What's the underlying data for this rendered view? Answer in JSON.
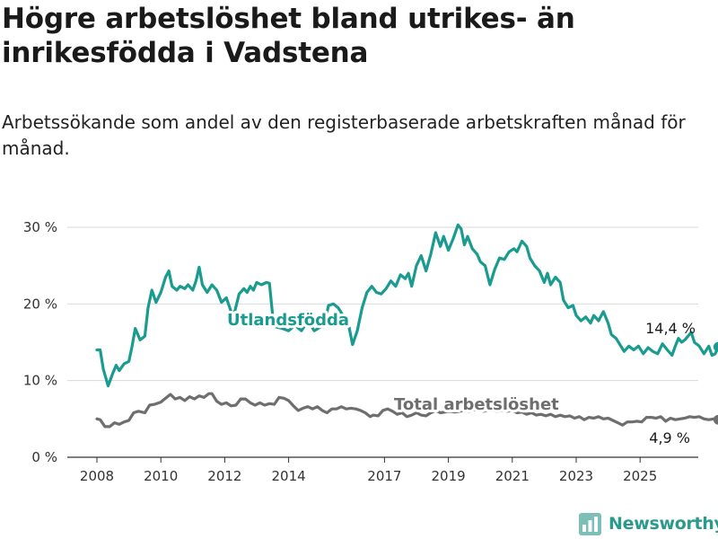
{
  "header": {
    "title": "Högre arbetslöshet bland utrikes- än inrikesfödda i Vadstena",
    "subtitle": "Arbetssökande som andel av den registerbaserade arbetskraften månad för månad."
  },
  "brand": {
    "name": "Newsworthy",
    "color": "#2a9a8c",
    "icon": "bar-chart-logo-icon"
  },
  "chart_data": {
    "type": "line",
    "ylim": [
      0,
      30
    ],
    "yticks": [
      0,
      10,
      20,
      30
    ],
    "ytick_labels": [
      "0 %",
      "10 %",
      "20 %",
      "30 %"
    ],
    "xlim": [
      2007.8,
      2026.4
    ],
    "xticks": [
      2008,
      2010,
      2012,
      2014,
      2017,
      2019,
      2021,
      2023,
      2025
    ],
    "xtick_labels": [
      "2008",
      "2010",
      "2012",
      "2014",
      "2017",
      "2019",
      "2021",
      "2023",
      "2025"
    ],
    "grid": "horizontal",
    "series": [
      {
        "name": "Utlandsfödda",
        "color": "#1a9b8f",
        "end_label": "14,4 %",
        "points": [
          [
            2008.0,
            14.0
          ],
          [
            2008.1,
            14.0
          ],
          [
            2008.2,
            11.5
          ],
          [
            2008.35,
            9.3
          ],
          [
            2008.5,
            11.0
          ],
          [
            2008.6,
            12.0
          ],
          [
            2008.7,
            11.3
          ],
          [
            2008.85,
            12.2
          ],
          [
            2009.0,
            12.5
          ],
          [
            2009.1,
            14.5
          ],
          [
            2009.2,
            16.8
          ],
          [
            2009.35,
            15.3
          ],
          [
            2009.5,
            15.8
          ],
          [
            2009.6,
            19.5
          ],
          [
            2009.72,
            21.8
          ],
          [
            2009.85,
            20.2
          ],
          [
            2010.0,
            21.5
          ],
          [
            2010.15,
            23.5
          ],
          [
            2010.25,
            24.3
          ],
          [
            2010.35,
            22.3
          ],
          [
            2010.5,
            21.8
          ],
          [
            2010.6,
            22.3
          ],
          [
            2010.75,
            22.0
          ],
          [
            2010.85,
            22.5
          ],
          [
            2011.0,
            21.8
          ],
          [
            2011.1,
            23.0
          ],
          [
            2011.2,
            24.8
          ],
          [
            2011.3,
            22.5
          ],
          [
            2011.45,
            21.5
          ],
          [
            2011.6,
            22.5
          ],
          [
            2011.75,
            21.8
          ],
          [
            2011.9,
            20.2
          ],
          [
            2012.05,
            20.8
          ],
          [
            2012.2,
            19.0
          ],
          [
            2012.3,
            18.8
          ],
          [
            2012.45,
            21.3
          ],
          [
            2012.6,
            22.0
          ],
          [
            2012.7,
            21.5
          ],
          [
            2012.8,
            22.3
          ],
          [
            2012.9,
            21.8
          ],
          [
            2013.0,
            22.8
          ],
          [
            2013.15,
            22.5
          ],
          [
            2013.3,
            22.8
          ],
          [
            2013.4,
            22.7
          ],
          [
            2013.5,
            18.5
          ],
          [
            2013.6,
            17.0
          ],
          [
            2013.8,
            16.8
          ],
          [
            2014.0,
            16.5
          ],
          [
            2014.2,
            17.2
          ],
          [
            2014.4,
            16.5
          ],
          [
            2014.6,
            17.8
          ],
          [
            2014.8,
            16.5
          ],
          [
            2015.0,
            17.0
          ],
          [
            2015.15,
            18.0
          ],
          [
            2015.25,
            19.8
          ],
          [
            2015.4,
            20.0
          ],
          [
            2015.55,
            19.5
          ],
          [
            2015.7,
            18.5
          ],
          [
            2015.85,
            17.8
          ],
          [
            2016.0,
            14.7
          ],
          [
            2016.15,
            16.5
          ],
          [
            2016.3,
            19.5
          ],
          [
            2016.45,
            21.5
          ],
          [
            2016.6,
            22.3
          ],
          [
            2016.75,
            21.5
          ],
          [
            2016.9,
            21.3
          ],
          [
            2017.05,
            22.0
          ],
          [
            2017.2,
            23.0
          ],
          [
            2017.35,
            22.3
          ],
          [
            2017.5,
            23.8
          ],
          [
            2017.65,
            23.3
          ],
          [
            2017.75,
            24.0
          ],
          [
            2017.85,
            22.3
          ],
          [
            2018.0,
            25.0
          ],
          [
            2018.15,
            26.3
          ],
          [
            2018.3,
            24.3
          ],
          [
            2018.45,
            26.5
          ],
          [
            2018.6,
            29.3
          ],
          [
            2018.75,
            27.5
          ],
          [
            2018.85,
            28.8
          ],
          [
            2019.0,
            27.0
          ],
          [
            2019.15,
            28.5
          ],
          [
            2019.3,
            30.3
          ],
          [
            2019.4,
            29.8
          ],
          [
            2019.5,
            27.7
          ],
          [
            2019.6,
            28.8
          ],
          [
            2019.75,
            27.2
          ],
          [
            2019.9,
            26.5
          ],
          [
            2020.0,
            25.5
          ],
          [
            2020.15,
            25.0
          ],
          [
            2020.3,
            22.5
          ],
          [
            2020.45,
            24.5
          ],
          [
            2020.6,
            26.0
          ],
          [
            2020.75,
            25.8
          ],
          [
            2020.9,
            26.8
          ],
          [
            2021.05,
            27.2
          ],
          [
            2021.15,
            26.8
          ],
          [
            2021.3,
            28.2
          ],
          [
            2021.45,
            27.5
          ],
          [
            2021.55,
            26.0
          ],
          [
            2021.7,
            25.0
          ],
          [
            2021.85,
            24.3
          ],
          [
            2022.0,
            22.8
          ],
          [
            2022.1,
            24.0
          ],
          [
            2022.2,
            22.5
          ],
          [
            2022.35,
            23.5
          ],
          [
            2022.5,
            22.8
          ],
          [
            2022.6,
            20.5
          ],
          [
            2022.75,
            19.5
          ],
          [
            2022.9,
            19.8
          ],
          [
            2023.0,
            18.5
          ],
          [
            2023.15,
            17.8
          ],
          [
            2023.3,
            18.3
          ],
          [
            2023.45,
            17.5
          ],
          [
            2023.55,
            18.5
          ],
          [
            2023.7,
            17.8
          ],
          [
            2023.85,
            19.0
          ],
          [
            2024.0,
            17.5
          ],
          [
            2024.1,
            16.0
          ],
          [
            2024.25,
            15.5
          ],
          [
            2024.4,
            14.5
          ],
          [
            2024.5,
            13.8
          ],
          [
            2024.65,
            14.5
          ],
          [
            2024.8,
            14.0
          ],
          [
            2024.95,
            14.5
          ],
          [
            2025.1,
            13.5
          ],
          [
            2025.25,
            14.3
          ],
          [
            2025.4,
            13.8
          ],
          [
            2025.55,
            13.5
          ],
          [
            2025.7,
            14.8
          ],
          [
            2025.85,
            14.0
          ],
          [
            2026.0,
            13.3
          ],
          [
            2026.1,
            14.5
          ],
          [
            2026.2,
            15.5
          ],
          [
            2026.3,
            15.0
          ],
          [
            2026.4,
            15.3
          ],
          [
            2026.5,
            15.8
          ],
          [
            2026.6,
            16.3
          ],
          [
            2026.7,
            15.0
          ],
          [
            2026.85,
            14.5
          ],
          [
            2027.0,
            13.5
          ],
          [
            2027.15,
            14.5
          ],
          [
            2027.25,
            13.3
          ],
          [
            2027.35,
            13.5
          ],
          [
            2027.45,
            14.4
          ]
        ]
      },
      {
        "name": "Total arbetslöshet",
        "color": "#6e6e6e",
        "end_label": "4,9 %",
        "points": [
          [
            2008.0,
            5.0
          ],
          [
            2008.1,
            4.9
          ],
          [
            2008.25,
            4.0
          ],
          [
            2008.4,
            4.0
          ],
          [
            2008.55,
            4.5
          ],
          [
            2008.7,
            4.3
          ],
          [
            2008.85,
            4.6
          ],
          [
            2009.0,
            4.8
          ],
          [
            2009.15,
            5.8
          ],
          [
            2009.3,
            6.0
          ],
          [
            2009.5,
            5.8
          ],
          [
            2009.65,
            6.8
          ],
          [
            2009.8,
            6.9
          ],
          [
            2010.0,
            7.2
          ],
          [
            2010.15,
            7.7
          ],
          [
            2010.3,
            8.2
          ],
          [
            2010.45,
            7.6
          ],
          [
            2010.6,
            7.8
          ],
          [
            2010.75,
            7.4
          ],
          [
            2010.9,
            7.9
          ],
          [
            2011.05,
            7.6
          ],
          [
            2011.2,
            8.0
          ],
          [
            2011.35,
            7.8
          ],
          [
            2011.5,
            8.3
          ],
          [
            2011.6,
            8.3
          ],
          [
            2011.75,
            7.3
          ],
          [
            2011.9,
            6.9
          ],
          [
            2012.05,
            7.1
          ],
          [
            2012.2,
            6.7
          ],
          [
            2012.35,
            6.8
          ],
          [
            2012.5,
            7.6
          ],
          [
            2012.65,
            7.6
          ],
          [
            2012.8,
            7.1
          ],
          [
            2012.95,
            6.8
          ],
          [
            2013.1,
            7.1
          ],
          [
            2013.25,
            6.8
          ],
          [
            2013.4,
            7.0
          ],
          [
            2013.55,
            6.9
          ],
          [
            2013.7,
            7.8
          ],
          [
            2013.85,
            7.7
          ],
          [
            2014.0,
            7.4
          ],
          [
            2014.15,
            6.7
          ],
          [
            2014.3,
            6.1
          ],
          [
            2014.45,
            6.4
          ],
          [
            2014.6,
            6.6
          ],
          [
            2014.75,
            6.3
          ],
          [
            2014.9,
            6.6
          ],
          [
            2015.05,
            6.1
          ],
          [
            2015.2,
            5.8
          ],
          [
            2015.35,
            6.3
          ],
          [
            2015.5,
            6.3
          ],
          [
            2015.65,
            6.6
          ],
          [
            2015.8,
            6.3
          ],
          [
            2015.95,
            6.4
          ],
          [
            2016.1,
            6.3
          ],
          [
            2016.25,
            6.1
          ],
          [
            2016.4,
            5.8
          ],
          [
            2016.55,
            5.3
          ],
          [
            2016.65,
            5.5
          ],
          [
            2016.8,
            5.4
          ],
          [
            2016.95,
            6.1
          ],
          [
            2017.1,
            6.3
          ],
          [
            2017.25,
            6.0
          ],
          [
            2017.4,
            5.6
          ],
          [
            2017.55,
            5.8
          ],
          [
            2017.7,
            5.3
          ],
          [
            2017.85,
            5.5
          ],
          [
            2018.0,
            5.8
          ],
          [
            2018.15,
            5.5
          ],
          [
            2018.3,
            5.4
          ],
          [
            2018.45,
            5.8
          ],
          [
            2018.6,
            6.1
          ],
          [
            2018.75,
            5.8
          ],
          [
            2018.9,
            5.9
          ],
          [
            2019.05,
            6.0
          ],
          [
            2019.2,
            5.9
          ],
          [
            2019.35,
            6.0
          ],
          [
            2019.5,
            6.1
          ],
          [
            2019.65,
            6.0
          ],
          [
            2019.8,
            6.2
          ],
          [
            2019.95,
            6.1
          ],
          [
            2020.1,
            6.0
          ],
          [
            2020.25,
            6.2
          ],
          [
            2020.4,
            6.1
          ],
          [
            2020.55,
            6.0
          ],
          [
            2020.7,
            6.1
          ],
          [
            2020.85,
            6.0
          ],
          [
            2021.0,
            6.1
          ],
          [
            2021.15,
            5.8
          ],
          [
            2021.3,
            5.9
          ],
          [
            2021.45,
            5.6
          ],
          [
            2021.6,
            5.8
          ],
          [
            2021.75,
            5.5
          ],
          [
            2021.9,
            5.6
          ],
          [
            2022.05,
            5.4
          ],
          [
            2022.2,
            5.6
          ],
          [
            2022.35,
            5.3
          ],
          [
            2022.5,
            5.5
          ],
          [
            2022.65,
            5.3
          ],
          [
            2022.8,
            5.4
          ],
          [
            2022.95,
            5.1
          ],
          [
            2023.1,
            5.3
          ],
          [
            2023.25,
            4.9
          ],
          [
            2023.4,
            5.2
          ],
          [
            2023.55,
            5.1
          ],
          [
            2023.7,
            5.3
          ],
          [
            2023.85,
            5.0
          ],
          [
            2024.0,
            5.1
          ],
          [
            2024.15,
            4.8
          ],
          [
            2024.3,
            4.5
          ],
          [
            2024.45,
            4.2
          ],
          [
            2024.6,
            4.6
          ],
          [
            2024.75,
            4.6
          ],
          [
            2024.9,
            4.7
          ],
          [
            2025.05,
            4.6
          ],
          [
            2025.2,
            5.2
          ],
          [
            2025.35,
            5.2
          ],
          [
            2025.5,
            5.1
          ],
          [
            2025.65,
            5.3
          ],
          [
            2025.8,
            4.7
          ],
          [
            2025.95,
            5.1
          ],
          [
            2026.1,
            4.9
          ],
          [
            2026.25,
            5.0
          ],
          [
            2026.4,
            5.1
          ],
          [
            2026.55,
            5.3
          ],
          [
            2026.7,
            5.2
          ],
          [
            2026.85,
            5.3
          ],
          [
            2027.0,
            5.0
          ],
          [
            2027.15,
            4.9
          ],
          [
            2027.3,
            5.0
          ],
          [
            2027.45,
            4.9
          ]
        ]
      }
    ]
  }
}
